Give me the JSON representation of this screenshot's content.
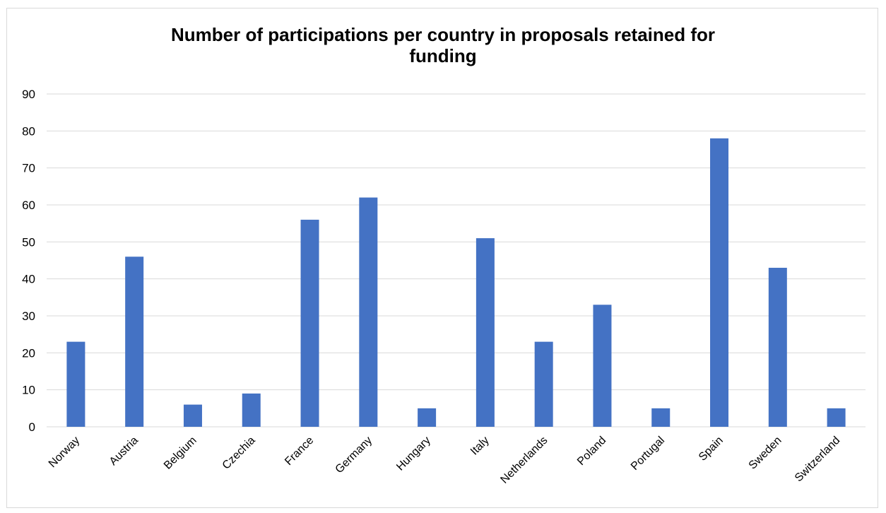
{
  "chart_data": {
    "type": "bar",
    "title_lines": [
      "Number of participations per country in proposals retained for",
      "funding"
    ],
    "xlabel": "",
    "ylabel": "",
    "categories": [
      "Norway",
      "Austria",
      "Belgium",
      "Czechia",
      "France",
      "Germany",
      "Hungary",
      "Italy",
      "Netherlands",
      "Poland",
      "Portugal",
      "Spain",
      "Sweden",
      "Switzerland"
    ],
    "series": [
      {
        "values": [
          23,
          46,
          6,
          9,
          56,
          62,
          5,
          51,
          23,
          33,
          5,
          78,
          43,
          5
        ]
      }
    ],
    "ylim": [
      0,
      90
    ],
    "yticks": [
      "0",
      "10",
      "20",
      "30",
      "40",
      "50",
      "60",
      "70",
      "80",
      "90"
    ],
    "grid": true,
    "legend": "none",
    "colors": {
      "bar": "#4472c4",
      "grid": "#d9d9d9",
      "text": "#000000"
    }
  }
}
